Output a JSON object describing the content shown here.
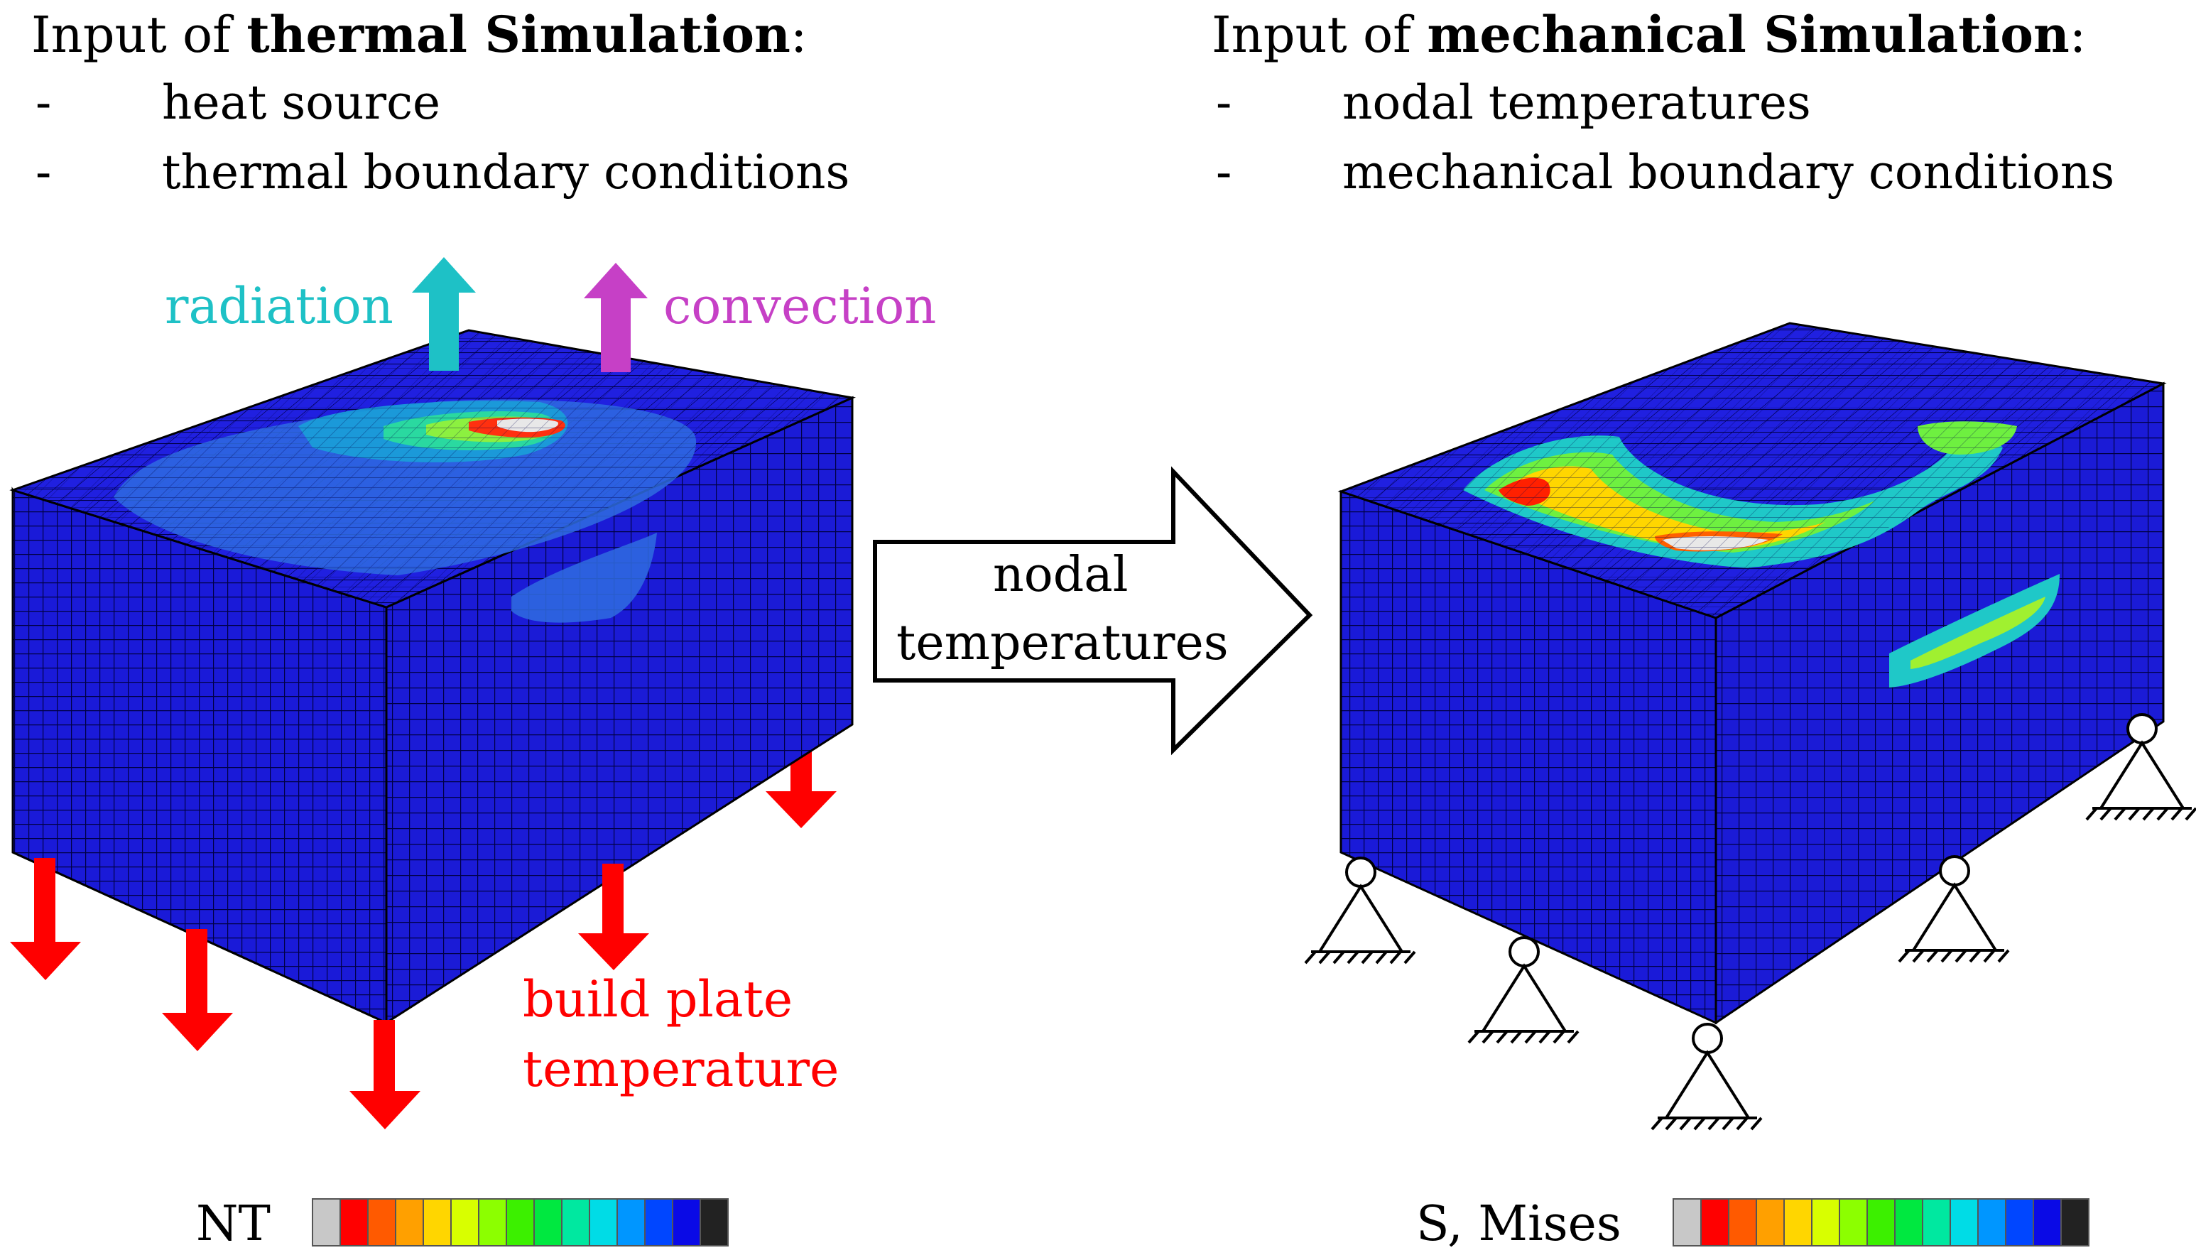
{
  "thermal": {
    "heading_prefix": "Input of ",
    "heading_bold": "thermal Simulation",
    "heading_suffix": ":",
    "items": [
      "heat source",
      "thermal boundary conditions"
    ],
    "bullet": "-",
    "labels": {
      "radiation": "radiation",
      "convection": "convection",
      "build_plate_line1": "build plate",
      "build_plate_line2": "temperature"
    },
    "legend_label": "NT",
    "colors": {
      "radiation": "#1ec1c6",
      "convection": "#c640c6",
      "build_plate": "#ff0000"
    }
  },
  "arrow": {
    "line1": "nodal",
    "line2": "temperatures"
  },
  "mechanical": {
    "heading_prefix": "Input of ",
    "heading_bold": "mechanical Simulation",
    "heading_suffix": ":",
    "items": [
      "nodal temperatures",
      "mechanical boundary conditions"
    ],
    "bullet": "-",
    "legend_label": "S, Mises"
  },
  "colormap": [
    "#c8c8c8",
    "#ff0000",
    "#ff5a00",
    "#ffa000",
    "#ffd600",
    "#d8ff00",
    "#8cff00",
    "#3cf000",
    "#00e840",
    "#00e8a0",
    "#00dce6",
    "#0096ff",
    "#0046ff",
    "#0a0ae6",
    "#222222"
  ]
}
